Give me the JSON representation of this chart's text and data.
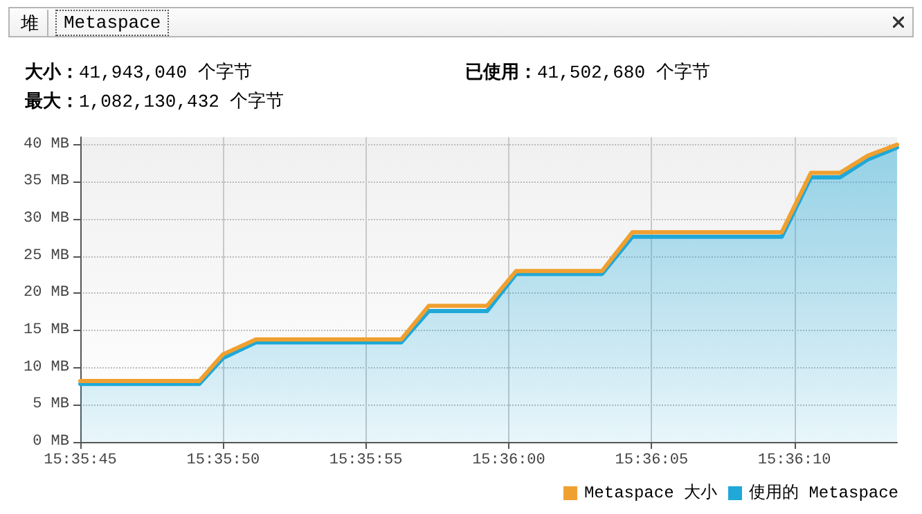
{
  "chart_data": {
    "type": "area",
    "annotations": [
      "堆",
      "Metaspace",
      "大小：41,943,040 个字节",
      "已使用：41,502,680 个字节",
      "最大：1,082,130,432 个字节"
    ],
    "series": [
      {
        "name": "Metaspace 大小",
        "type": "line",
        "color": "#f0a030",
        "x": [
          15.595833,
          15.596991,
          15.597222,
          15.597541,
          15.598955,
          15.599222,
          15.599789,
          15.600072,
          15.600908,
          15.601202,
          15.602655,
          15.602939,
          15.603222,
          15.603491,
          15.603777
        ],
        "values": [
          8.2,
          8.2,
          11.8,
          13.8,
          13.8,
          18.3,
          18.3,
          23.0,
          23.0,
          28.2,
          28.2,
          36.2,
          36.2,
          38.5,
          40.0
        ]
      },
      {
        "name": "使用的 Metaspace",
        "type": "area",
        "color": "#1fa8d8",
        "x": [
          15.595833,
          15.596991,
          15.597222,
          15.597541,
          15.598955,
          15.599222,
          15.599789,
          15.600072,
          15.600908,
          15.601202,
          15.602655,
          15.602939,
          15.603222,
          15.603491,
          15.603777
        ],
        "values": [
          7.8,
          7.8,
          11.3,
          13.4,
          13.4,
          17.6,
          17.6,
          22.6,
          22.6,
          27.6,
          27.6,
          35.6,
          35.6,
          38.0,
          39.6
        ]
      }
    ],
    "xlim": [
      15.595833,
      15.603777
    ],
    "xticks": [
      {
        "value": 15.595833,
        "label": "15:35:45"
      },
      {
        "value": 15.597222,
        "label": "15:35:50"
      },
      {
        "value": 15.598611,
        "label": "15:35:55"
      },
      {
        "value": 15.6,
        "label": "15:36:00"
      },
      {
        "value": 15.601389,
        "label": "15:36:05"
      },
      {
        "value": 15.602778,
        "label": "15:36:10"
      }
    ],
    "ylim": [
      0,
      41
    ],
    "yticks": [
      {
        "value": 0,
        "label": "0 MB"
      },
      {
        "value": 5,
        "label": "5 MB"
      },
      {
        "value": 10,
        "label": "10 MB"
      },
      {
        "value": 15,
        "label": "15 MB"
      },
      {
        "value": 20,
        "label": "20 MB"
      },
      {
        "value": 25,
        "label": "25 MB"
      },
      {
        "value": 30,
        "label": "30 MB"
      },
      {
        "value": 35,
        "label": "35 MB"
      },
      {
        "value": 40,
        "label": "40 MB"
      }
    ],
    "grid": true,
    "legend": "bottom right",
    "marker": "none",
    "line_style": "solid"
  }
}
